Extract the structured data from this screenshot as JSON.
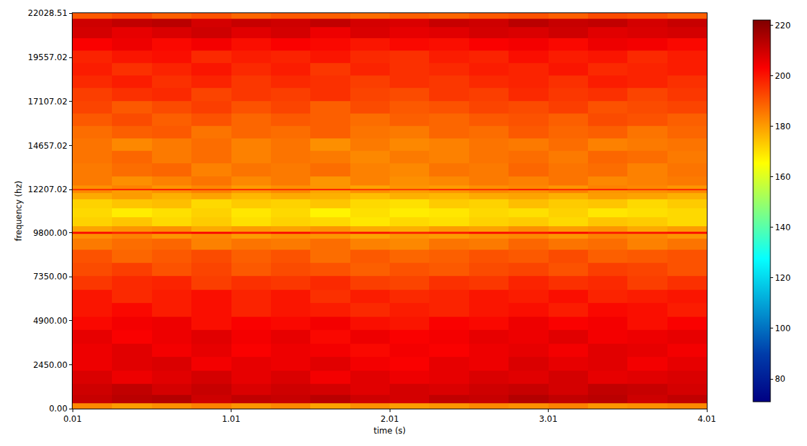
{
  "chart_data": {
    "type": "heatmap",
    "x_label": "time (s)",
    "y_label": "frequency (hz)",
    "color": "Jet",
    "xlim": [
      0.01,
      4.01
    ],
    "ylim": [
      0,
      22028.51
    ],
    "xticks": [
      0.01,
      1.01,
      2.01,
      3.01,
      4.01
    ],
    "yticks": [
      {
        "value": 0,
        "label": "0.00"
      },
      {
        "value": 2450,
        "label": "2450.00"
      },
      {
        "value": 4900,
        "label": "4900.00"
      },
      {
        "value": 7350,
        "label": "7350.00"
      },
      {
        "value": 9800,
        "label": "9800.00"
      },
      {
        "value": 12207.02,
        "label": "12207.02"
      },
      {
        "value": 14657.02,
        "label": "14657.02"
      },
      {
        "value": 17107.02,
        "label": "17107.02"
      },
      {
        "value": 19557.02,
        "label": "19557.02"
      },
      {
        "value": 22028.51,
        "label": "22028.51"
      }
    ],
    "colorbar": {
      "range": [
        71,
        222
      ],
      "ticks": [
        80,
        100,
        120,
        140,
        160,
        180,
        200,
        220
      ]
    },
    "x": [
      0.135,
      0.385,
      0.635,
      0.885,
      1.135,
      1.385,
      1.635,
      1.885,
      2.135,
      2.385,
      2.635,
      2.885,
      3.135,
      3.385,
      3.635,
      3.885
    ],
    "y": [
      100,
      500,
      1000,
      1750,
      2500,
      3250,
      4000,
      4750,
      5500,
      6250,
      7000,
      7750,
      8500,
      9200,
      9700,
      9800,
      9900,
      10400,
      10900,
      11400,
      11900,
      12150,
      12210,
      12270,
      12600,
      13300,
      14000,
      14700,
      15400,
      16100,
      16800,
      17500,
      18200,
      18900,
      19600,
      20300,
      21000,
      21500,
      21900
    ],
    "z": [
      [
        183,
        180,
        182,
        184,
        181,
        183,
        179,
        182,
        180,
        181,
        183,
        182,
        184,
        181,
        182,
        183
      ],
      [
        211,
        213,
        214,
        210,
        212,
        211,
        213,
        210,
        209,
        212,
        211,
        214,
        212,
        213,
        210,
        212
      ],
      [
        210,
        212,
        209,
        211,
        208,
        210,
        209,
        207,
        209,
        208,
        210,
        211,
        209,
        212,
        211,
        209
      ],
      [
        208,
        205,
        207,
        209,
        206,
        208,
        204,
        207,
        205,
        206,
        208,
        207,
        209,
        206,
        207,
        208
      ],
      [
        205,
        207,
        208,
        204,
        206,
        205,
        207,
        204,
        203,
        206,
        205,
        208,
        206,
        207,
        204,
        206
      ],
      [
        205,
        207,
        204,
        206,
        203,
        205,
        204,
        202,
        204,
        203,
        205,
        206,
        204,
        207,
        206,
        204
      ],
      [
        206,
        203,
        205,
        207,
        204,
        206,
        202,
        205,
        203,
        204,
        206,
        205,
        207,
        204,
        205,
        206
      ],
      [
        202,
        204,
        205,
        201,
        203,
        202,
        204,
        201,
        200,
        203,
        202,
        205,
        203,
        204,
        201,
        203
      ],
      [
        200,
        202,
        199,
        201,
        198,
        200,
        199,
        197,
        199,
        198,
        200,
        201,
        199,
        202,
        201,
        199
      ],
      [
        200,
        197,
        199,
        201,
        198,
        200,
        196,
        199,
        197,
        198,
        200,
        199,
        201,
        198,
        199,
        200
      ],
      [
        195,
        197,
        198,
        194,
        196,
        195,
        197,
        194,
        193,
        196,
        195,
        198,
        196,
        197,
        194,
        196
      ],
      [
        192,
        194,
        191,
        193,
        190,
        192,
        191,
        189,
        191,
        190,
        192,
        193,
        191,
        194,
        193,
        191
      ],
      [
        191,
        188,
        190,
        192,
        189,
        191,
        187,
        190,
        188,
        189,
        191,
        190,
        192,
        189,
        190,
        191
      ],
      [
        185,
        187,
        188,
        184,
        186,
        185,
        187,
        184,
        183,
        186,
        185,
        188,
        186,
        187,
        184,
        186
      ],
      [
        182,
        184,
        181,
        183,
        180,
        182,
        181,
        179,
        181,
        180,
        182,
        183,
        181,
        184,
        183,
        181
      ],
      [
        201,
        198,
        200,
        202,
        199,
        201,
        197,
        200,
        198,
        199,
        201,
        200,
        202,
        199,
        200,
        201
      ],
      [
        179,
        181,
        182,
        178,
        180,
        179,
        181,
        178,
        177,
        180,
        179,
        182,
        180,
        181,
        178,
        180
      ],
      [
        172,
        174,
        171,
        173,
        170,
        172,
        171,
        169,
        171,
        170,
        172,
        173,
        171,
        174,
        173,
        171
      ],
      [
        171,
        168,
        170,
        172,
        169,
        171,
        167,
        170,
        168,
        169,
        171,
        170,
        172,
        169,
        170,
        171
      ],
      [
        172,
        174,
        175,
        171,
        173,
        172,
        174,
        171,
        170,
        173,
        172,
        175,
        173,
        174,
        171,
        173
      ],
      [
        178,
        180,
        177,
        179,
        176,
        178,
        177,
        175,
        177,
        176,
        178,
        179,
        177,
        180,
        179,
        177
      ],
      [
        183,
        180,
        182,
        184,
        181,
        183,
        179,
        182,
        180,
        181,
        183,
        182,
        184,
        181,
        182,
        183
      ],
      [
        197,
        199,
        200,
        196,
        198,
        197,
        199,
        196,
        195,
        198,
        197,
        200,
        198,
        199,
        196,
        198
      ],
      [
        182,
        184,
        181,
        183,
        180,
        182,
        181,
        179,
        181,
        180,
        182,
        183,
        181,
        184,
        183,
        181
      ],
      [
        185,
        182,
        184,
        186,
        183,
        185,
        181,
        184,
        182,
        183,
        185,
        184,
        186,
        183,
        184,
        185
      ],
      [
        185,
        187,
        188,
        184,
        186,
        185,
        187,
        184,
        183,
        186,
        185,
        188,
        186,
        187,
        184,
        186
      ],
      [
        186,
        188,
        185,
        187,
        184,
        186,
        185,
        183,
        185,
        184,
        186,
        187,
        185,
        188,
        187,
        185
      ],
      [
        186,
        183,
        185,
        187,
        184,
        186,
        182,
        185,
        183,
        184,
        186,
        185,
        187,
        184,
        185,
        186
      ],
      [
        187,
        189,
        190,
        186,
        188,
        187,
        189,
        186,
        185,
        188,
        187,
        190,
        188,
        189,
        186,
        188
      ],
      [
        190,
        192,
        189,
        191,
        188,
        190,
        189,
        187,
        189,
        188,
        190,
        191,
        189,
        192,
        191,
        189
      ],
      [
        193,
        190,
        192,
        194,
        191,
        193,
        189,
        192,
        190,
        191,
        193,
        192,
        194,
        191,
        192,
        193
      ],
      [
        194,
        196,
        197,
        193,
        195,
        194,
        196,
        193,
        192,
        195,
        194,
        197,
        195,
        196,
        193,
        195
      ],
      [
        197,
        199,
        196,
        198,
        195,
        197,
        196,
        194,
        196,
        195,
        197,
        198,
        196,
        199,
        198,
        196
      ],
      [
        199,
        196,
        198,
        200,
        197,
        199,
        195,
        198,
        196,
        197,
        199,
        198,
        200,
        197,
        198,
        199
      ],
      [
        198,
        200,
        201,
        197,
        199,
        198,
        200,
        197,
        196,
        199,
        198,
        201,
        199,
        200,
        197,
        199
      ],
      [
        203,
        205,
        202,
        204,
        201,
        203,
        202,
        200,
        202,
        201,
        203,
        204,
        202,
        205,
        204,
        202
      ],
      [
        209,
        206,
        208,
        210,
        207,
        209,
        205,
        208,
        206,
        207,
        209,
        208,
        210,
        207,
        208,
        209
      ],
      [
        210,
        212,
        213,
        209,
        211,
        210,
        212,
        209,
        208,
        211,
        210,
        213,
        211,
        212,
        209,
        211
      ],
      [
        190,
        192,
        189,
        191,
        188,
        190,
        189,
        187,
        189,
        188,
        190,
        191,
        189,
        192,
        191,
        189
      ]
    ]
  }
}
